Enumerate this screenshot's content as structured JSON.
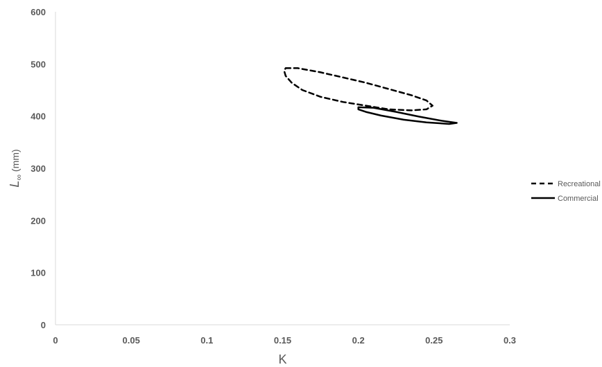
{
  "chart_data": {
    "type": "line",
    "title": "",
    "xlabel": "K",
    "ylabel": {
      "main": "L",
      "subscript": "∞",
      "unit": " (mm)"
    },
    "xlim": [
      0,
      0.3
    ],
    "ylim": [
      0,
      600
    ],
    "x_ticks": [
      "0",
      "0.05",
      "0.1",
      "0.15",
      "0.2",
      "0.25",
      "0.3"
    ],
    "x_tick_values": [
      0,
      0.05,
      0.1,
      0.15,
      0.2,
      0.25,
      0.3
    ],
    "y_ticks": [
      "0",
      "100",
      "200",
      "300",
      "400",
      "500",
      "600"
    ],
    "y_tick_values": [
      0,
      100,
      200,
      300,
      400,
      500,
      600
    ],
    "grid": false,
    "legend_position": "right",
    "series": [
      {
        "name": "Recreational",
        "style": "dashed",
        "color": "#000000",
        "points": [
          [
            0.152,
            492
          ],
          [
            0.16,
            492
          ],
          [
            0.175,
            484
          ],
          [
            0.19,
            474
          ],
          [
            0.205,
            464
          ],
          [
            0.22,
            452
          ],
          [
            0.235,
            440
          ],
          [
            0.245,
            430
          ],
          [
            0.249,
            420
          ],
          [
            0.245,
            413
          ],
          [
            0.235,
            411
          ],
          [
            0.22,
            413
          ],
          [
            0.205,
            420
          ],
          [
            0.19,
            427
          ],
          [
            0.175,
            437
          ],
          [
            0.163,
            450
          ],
          [
            0.156,
            464
          ],
          [
            0.152,
            477
          ],
          [
            0.151,
            487
          ],
          [
            0.152,
            492
          ]
        ]
      },
      {
        "name": "Commercial",
        "style": "solid",
        "color": "#000000",
        "points": [
          [
            0.2,
            417
          ],
          [
            0.21,
            416
          ],
          [
            0.225,
            408
          ],
          [
            0.24,
            399
          ],
          [
            0.255,
            391
          ],
          [
            0.265,
            387
          ],
          [
            0.26,
            385
          ],
          [
            0.245,
            388
          ],
          [
            0.23,
            393
          ],
          [
            0.215,
            401
          ],
          [
            0.205,
            408
          ],
          [
            0.2,
            413
          ],
          [
            0.2,
            417
          ]
        ]
      }
    ]
  }
}
